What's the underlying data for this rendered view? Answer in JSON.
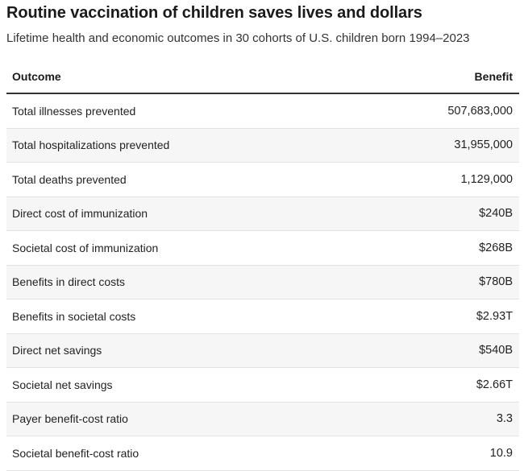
{
  "title": "Routine vaccination of children saves lives and dollars",
  "subtitle": "Lifetime health and economic outcomes in 30 cohorts of U.S. children born 1994–2023",
  "table": {
    "headers": {
      "outcome": "Outcome",
      "benefit": "Benefit"
    },
    "rows": [
      {
        "outcome": "Total illnesses prevented",
        "benefit": "507,683,000"
      },
      {
        "outcome": "Total hospitalizations prevented",
        "benefit": "31,955,000"
      },
      {
        "outcome": "Total deaths prevented",
        "benefit": "1,129,000"
      },
      {
        "outcome": "Direct cost of immunization",
        "benefit": "$240B"
      },
      {
        "outcome": "Societal cost of immunization",
        "benefit": "$268B"
      },
      {
        "outcome": "Benefits in direct costs",
        "benefit": "$780B"
      },
      {
        "outcome": "Benefits in societal costs",
        "benefit": "$2.93T"
      },
      {
        "outcome": "Direct net savings",
        "benefit": "$540B"
      },
      {
        "outcome": "Societal net savings",
        "benefit": "$2.66T"
      },
      {
        "outcome": "Payer benefit-cost ratio",
        "benefit": "3.3"
      },
      {
        "outcome": "Societal benefit-cost ratio",
        "benefit": "10.9"
      }
    ]
  },
  "colors": {
    "text": "#222222",
    "header_rule": "#333333",
    "row_divider": "#e3e3e3",
    "alt_row_background": "#f6f6f6"
  }
}
